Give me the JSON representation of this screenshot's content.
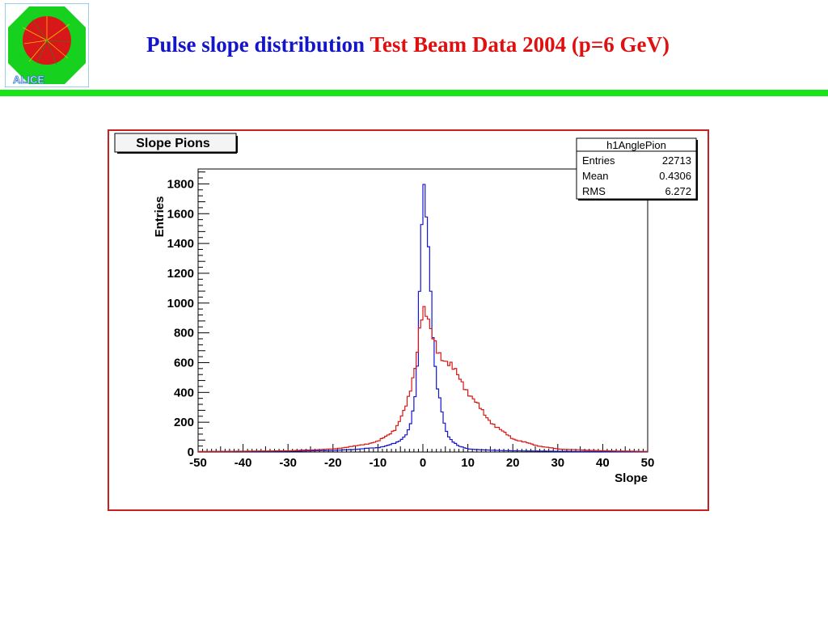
{
  "slide": {
    "title_main": "Pulse slope distribution",
    "title_detail": "Test Beam Data 2004 (p=6 GeV)",
    "colors": {
      "title_main": "#1414c8",
      "title_detail": "#e01010",
      "rule": "#19e619"
    }
  },
  "logo": {
    "text": "ALICE",
    "icon": "alice-detector-logo"
  },
  "chart_data": {
    "type": "line",
    "title": "Slope Pions",
    "xlabel": "Slope",
    "ylabel": "Entries",
    "xlim": [
      -50,
      50
    ],
    "ylim": [
      0,
      1900
    ],
    "xticks": [
      "-50",
      "-40",
      "-30",
      "-20",
      "-10",
      "0",
      "10",
      "20",
      "30",
      "40",
      "50"
    ],
    "yticks": [
      "0",
      "200",
      "400",
      "600",
      "800",
      "1000",
      "1200",
      "1400",
      "1600",
      "1800"
    ],
    "stats_box": {
      "name": "h1AnglePion",
      "rows": [
        {
          "label": "Entries",
          "value": "22713"
        },
        {
          "label": "Mean",
          "value": "0.4306"
        },
        {
          "label": "RMS",
          "value": "6.272"
        }
      ]
    },
    "series": [
      {
        "color": "#1414d2",
        "x": [
          -50,
          -30,
          -20,
          -15,
          -10,
          -8,
          -6,
          -5,
          -4,
          -3,
          -2,
          -1.5,
          -1,
          -0.5,
          0,
          0.5,
          1,
          1.5,
          2,
          2.5,
          3,
          4,
          5,
          6,
          8,
          10,
          15,
          20,
          30,
          40,
          50
        ],
        "y": [
          3,
          5,
          10,
          18,
          30,
          42,
          60,
          80,
          110,
          160,
          300,
          420,
          700,
          1350,
          1760,
          1770,
          1560,
          1280,
          950,
          650,
          470,
          300,
          150,
          90,
          40,
          20,
          12,
          8,
          5,
          3,
          2
        ]
      },
      {
        "color": "#dc1414",
        "x": [
          -50,
          -30,
          -20,
          -15,
          -10,
          -8,
          -6,
          -5,
          -4,
          -3,
          -2,
          -1.5,
          -1,
          -0.5,
          0,
          0.5,
          1,
          1.5,
          2,
          3,
          4,
          5,
          6,
          7,
          8,
          9,
          10,
          12,
          14,
          16,
          18,
          20,
          25,
          30,
          40,
          50
        ],
        "y": [
          3,
          8,
          20,
          40,
          70,
          110,
          160,
          220,
          280,
          380,
          540,
          630,
          780,
          900,
          950,
          930,
          880,
          820,
          770,
          710,
          660,
          620,
          580,
          540,
          500,
          460,
          410,
          320,
          240,
          180,
          130,
          90,
          45,
          20,
          8,
          4
        ]
      }
    ]
  }
}
